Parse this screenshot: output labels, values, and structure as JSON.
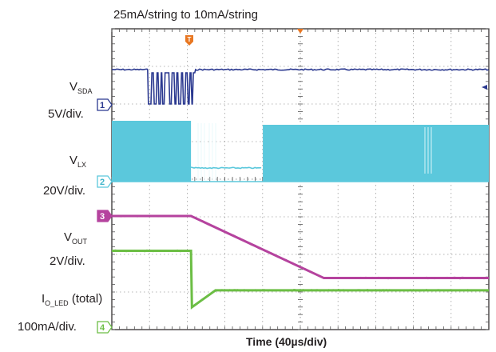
{
  "chart_data": {
    "type": "line",
    "title": "25mA/string to 10mA/string",
    "xlabel": "Time (40µs/div)",
    "x_unit": "µs",
    "time_per_div_us": 40,
    "xlim": [
      0,
      400
    ],
    "h_divisions": 10,
    "v_divisions": 8,
    "grid": true,
    "trigger_marker": "T",
    "channels": [
      {
        "id": "1",
        "name_main": "V",
        "name_sub": "SDA",
        "name_suffix": "",
        "scale": "5V/div.",
        "color": "#2b3990",
        "description": "I2C data line; idle high, burst of data pulses, then idle high",
        "idle_level": "high",
        "burst_start_us": 38,
        "burst_end_us": 88
      },
      {
        "id": "2",
        "name_main": "V",
        "name_sub": "LX",
        "name_suffix": "",
        "scale": "20V/div.",
        "color": "#5bc8dc",
        "description": "Switch node; switching until ~84µs, off until ~156µs, then switching resumes",
        "switching_stop_us": 84,
        "switching_resume_us": 156
      },
      {
        "id": "3",
        "name_main": "V",
        "name_sub": "OUT",
        "name_suffix": "",
        "scale": "2V/div.",
        "color": "#b5439e",
        "description": "Output voltage; flat, then ramps down from ~84µs to ~225µs",
        "points_us_div": [
          [
            0,
            0.0
          ],
          [
            84,
            0.0
          ],
          [
            225,
            -1.65
          ],
          [
            400,
            -1.65
          ]
        ]
      },
      {
        "id": "4",
        "name_main": "I",
        "name_sub": "O_LED",
        "name_suffix": " (total)",
        "scale": "100mA/div.",
        "color": "#6cbe45",
        "description": "Total LED current; steps from 25mA/string to 10mA/string level at ~84µs",
        "points_mA": [
          [
            0,
            150
          ],
          [
            84,
            150
          ],
          [
            85,
            0
          ],
          [
            110,
            45
          ],
          [
            400,
            45
          ]
        ]
      }
    ]
  }
}
